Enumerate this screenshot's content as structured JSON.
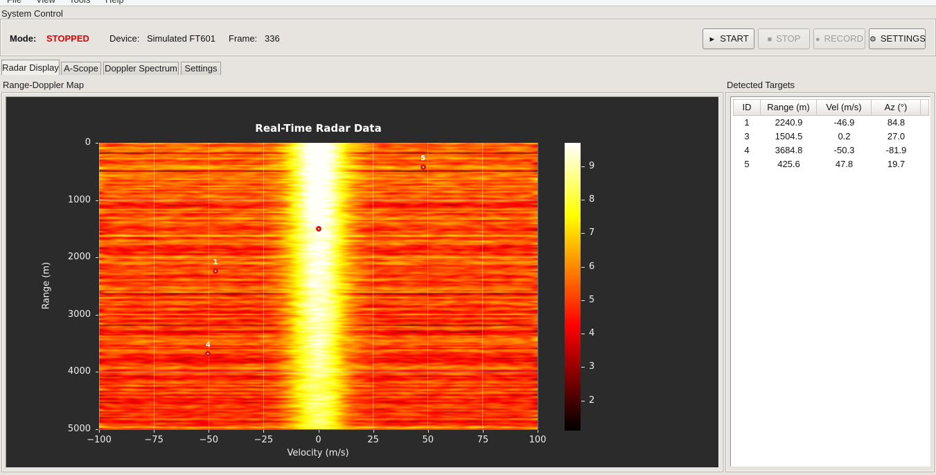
{
  "menu": {
    "items": [
      "File",
      "View",
      "Tools",
      "Help"
    ]
  },
  "system_control": {
    "title": "System Control",
    "mode_label": "Mode:",
    "mode_value": "STOPPED",
    "mode_color": "#e00000",
    "device_label": "Device:",
    "device_value": "Simulated FT601",
    "frame_label": "Frame:",
    "frame_value": "336",
    "buttons": [
      {
        "label": "START",
        "icon": "play-icon",
        "glyph": "►",
        "enabled": true
      },
      {
        "label": "STOP",
        "icon": "stop-icon",
        "glyph": "■",
        "enabled": false
      },
      {
        "label": "RECORD",
        "icon": "record-icon",
        "glyph": "●",
        "enabled": false
      },
      {
        "label": "SETTINGS",
        "icon": "gear-icon",
        "glyph": "⚙",
        "enabled": true
      }
    ]
  },
  "tabs": [
    {
      "label": "Radar Display",
      "active": true
    },
    {
      "label": "A-Scope",
      "active": false
    },
    {
      "label": "Doppler Spectrum",
      "active": false
    },
    {
      "label": "Settings",
      "active": false
    }
  ],
  "left_panel": {
    "title": "Range-Doppler Map"
  },
  "chart_data": {
    "type": "heatmap",
    "title": "Real-Time Radar Data",
    "xlabel": "Velocity (m/s)",
    "ylabel": "Range (m)",
    "x_range": [
      -100,
      100
    ],
    "x_ticks": [
      -100,
      -75,
      -50,
      -25,
      0,
      25,
      50,
      75,
      100
    ],
    "x_tick_labels": [
      "−100",
      "−75",
      "−50",
      "−25",
      "0",
      "25",
      "50",
      "75",
      "100"
    ],
    "y_range": [
      0,
      5000
    ],
    "y_ticks": [
      0,
      1000,
      2000,
      3000,
      4000,
      5000
    ],
    "y_tick_labels": [
      "0",
      "1000",
      "2000",
      "3000",
      "4000",
      "5000"
    ],
    "y_inverted": true,
    "grid": true,
    "colormap": "hot",
    "color_range": [
      1.1,
      9.7
    ],
    "colorbar_ticks": [
      2,
      3,
      4,
      5,
      6,
      7,
      8,
      9
    ],
    "description": "Noisy range-Doppler intensity map (horizontal speckle streaks) with a bright clutter ridge centered near 0 m/s spanning all ranges; intensity fades from yellow at near range to dark red at far range",
    "clutter_ridge": {
      "center_velocity": 0,
      "sigma_velocity": 9,
      "peak_value": 9.6,
      "background_mean": 5.4
    },
    "targets": [
      {
        "id": "1",
        "velocity": -46.9,
        "range": 2240.9
      },
      {
        "id": "3",
        "velocity": 0.2,
        "range": 1504.5
      },
      {
        "id": "4",
        "velocity": -50.3,
        "range": 3684.8
      },
      {
        "id": "5",
        "velocity": 47.8,
        "range": 425.6
      }
    ]
  },
  "targets_panel": {
    "title": "Detected Targets",
    "columns": [
      "ID",
      "Range (m)",
      "Vel (m/s)",
      "Az (°)"
    ],
    "rows": [
      [
        "1",
        "2240.9",
        "-46.9",
        "84.8"
      ],
      [
        "3",
        "1504.5",
        "0.2",
        "27.0"
      ],
      [
        "4",
        "3684.8",
        "-50.3",
        "-81.9"
      ],
      [
        "5",
        "425.6",
        "47.8",
        "19.7"
      ]
    ]
  }
}
